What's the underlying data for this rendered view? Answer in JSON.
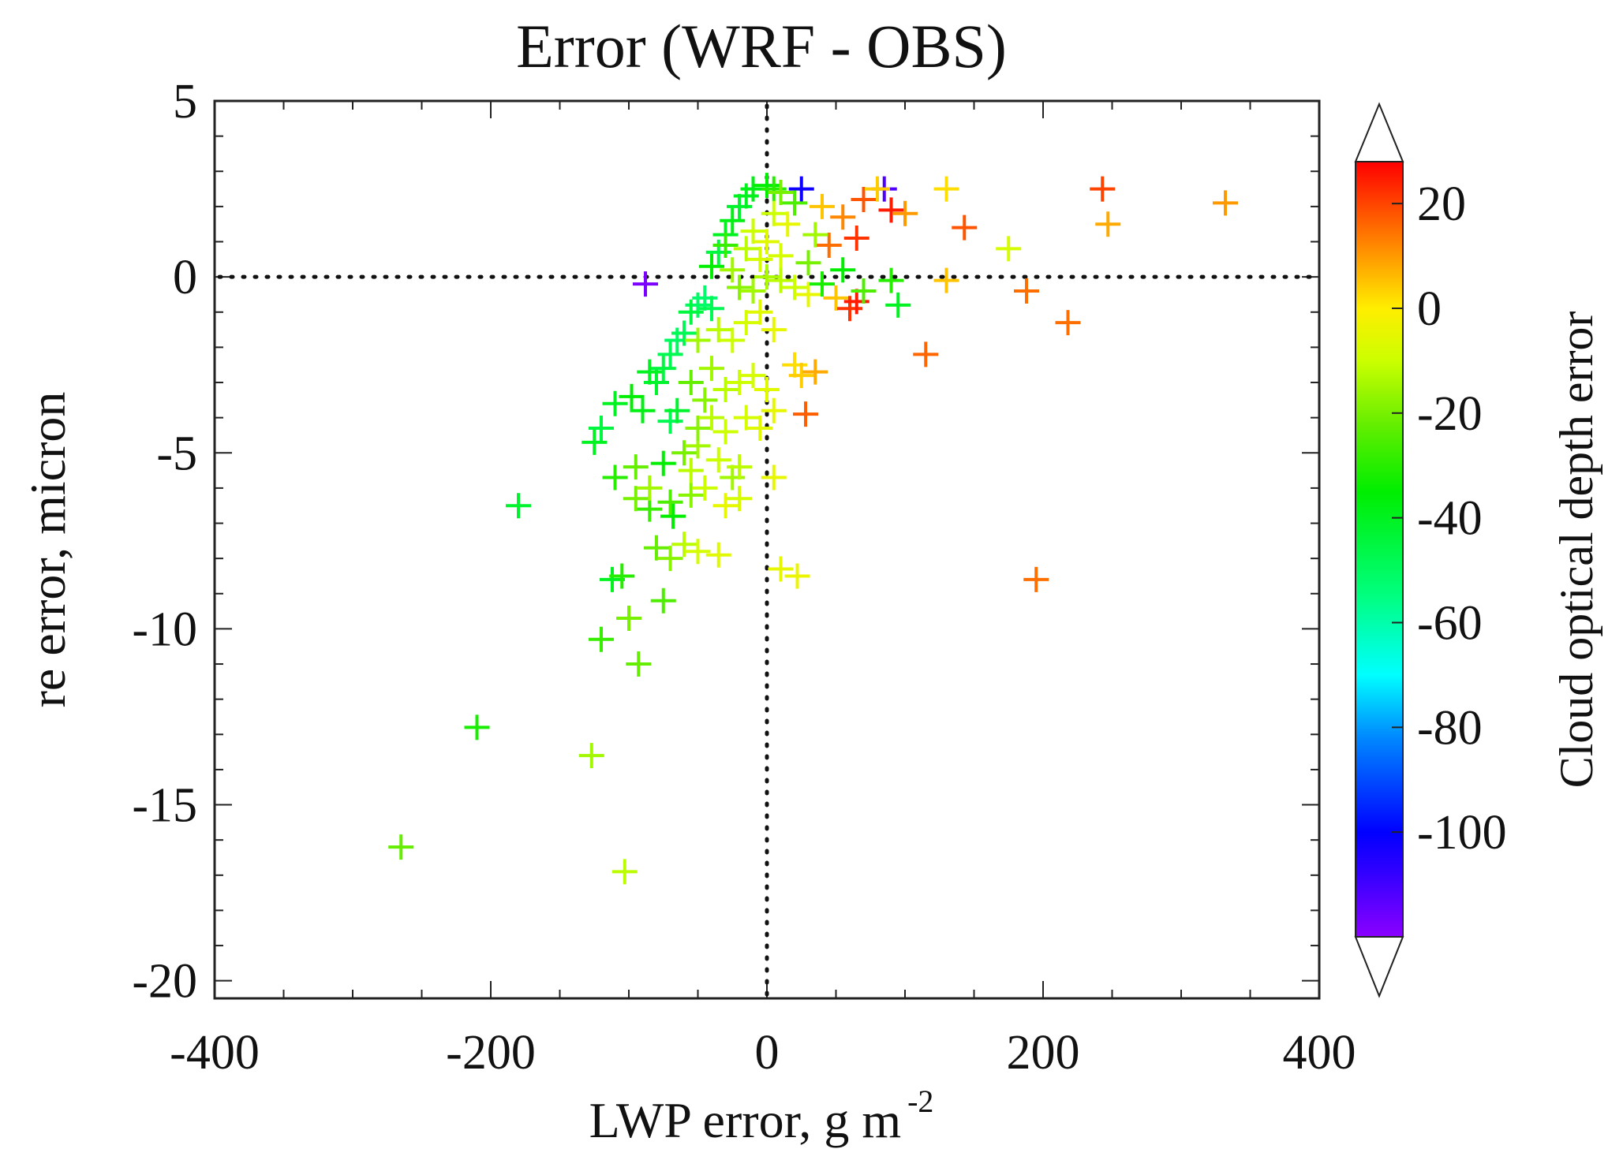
{
  "chart_data": {
    "type": "scatter",
    "title": "Error (WRF - OBS)",
    "xlabel_main": "LWP error, g m",
    "xlabel_sup": "-2",
    "ylabel": "re error, micron",
    "xlim": [
      -400,
      400
    ],
    "ylim": [
      -20.5,
      5
    ],
    "xticks": [
      -400,
      -200,
      0,
      200,
      400
    ],
    "xtick_labels": [
      "-400",
      "-200",
      "0",
      "200",
      "400"
    ],
    "yticks": [
      5,
      0,
      -5,
      -10,
      -15,
      -20
    ],
    "ytick_labels": [
      "5",
      "0",
      "-5",
      "-10",
      "-15",
      "-20"
    ],
    "reference_lines": {
      "x": 0,
      "y": 0,
      "style": "dotted"
    },
    "marker": "plus",
    "colorbar": {
      "label": "Cloud optical depth error",
      "range": [
        -120,
        28
      ],
      "ticks": [
        20,
        0,
        -20,
        -40,
        -60,
        -80,
        -100
      ],
      "tick_labels": [
        "20",
        "0",
        "-20",
        "-40",
        "-60",
        "-80",
        "-100"
      ],
      "extend": "both",
      "colormap": [
        {
          "v": -120,
          "c": "#8b00ff"
        },
        {
          "v": -108,
          "c": "#3300ff"
        },
        {
          "v": -100,
          "c": "#0000ff"
        },
        {
          "v": -82,
          "c": "#0088ff"
        },
        {
          "v": -70,
          "c": "#00ffff"
        },
        {
          "v": -55,
          "c": "#00ff80"
        },
        {
          "v": -35,
          "c": "#00ee00"
        },
        {
          "v": -22,
          "c": "#66ee00"
        },
        {
          "v": -10,
          "c": "#ccff00"
        },
        {
          "v": 0,
          "c": "#ffee00"
        },
        {
          "v": 8,
          "c": "#ffaa00"
        },
        {
          "v": 18,
          "c": "#ff5500"
        },
        {
          "v": 28,
          "c": "#ff0000"
        }
      ]
    },
    "points": [
      {
        "x": -265,
        "y": -16.2,
        "c": -22
      },
      {
        "x": -210,
        "y": -12.8,
        "c": -32
      },
      {
        "x": -180,
        "y": -6.5,
        "c": -42
      },
      {
        "x": -127,
        "y": -13.6,
        "c": -15
      },
      {
        "x": -103,
        "y": -16.9,
        "c": -12
      },
      {
        "x": -93,
        "y": -11.0,
        "c": -22
      },
      {
        "x": -120,
        "y": -10.3,
        "c": -28
      },
      {
        "x": -100,
        "y": -9.7,
        "c": -20
      },
      {
        "x": -112,
        "y": -8.6,
        "c": -40
      },
      {
        "x": -105,
        "y": -8.5,
        "c": -30
      },
      {
        "x": -75,
        "y": -9.2,
        "c": -25
      },
      {
        "x": -80,
        "y": -7.7,
        "c": -22
      },
      {
        "x": -70,
        "y": -8.0,
        "c": -18
      },
      {
        "x": -60,
        "y": -7.6,
        "c": -12
      },
      {
        "x": -50,
        "y": -7.8,
        "c": -8
      },
      {
        "x": -35,
        "y": -7.9,
        "c": -6
      },
      {
        "x": 10,
        "y": -8.3,
        "c": -5
      },
      {
        "x": 22,
        "y": -8.5,
        "c": -4
      },
      {
        "x": 195,
        "y": -8.6,
        "c": 15
      },
      {
        "x": -85,
        "y": -6.6,
        "c": -28
      },
      {
        "x": -68,
        "y": -6.8,
        "c": -35
      },
      {
        "x": -95,
        "y": -6.3,
        "c": -20
      },
      {
        "x": -85,
        "y": -6.0,
        "c": -15
      },
      {
        "x": -70,
        "y": -6.4,
        "c": -25
      },
      {
        "x": -55,
        "y": -6.2,
        "c": -18
      },
      {
        "x": -45,
        "y": -6.0,
        "c": -10
      },
      {
        "x": -30,
        "y": -6.5,
        "c": -5
      },
      {
        "x": -20,
        "y": -6.3,
        "c": -8
      },
      {
        "x": -110,
        "y": -5.7,
        "c": -30
      },
      {
        "x": -95,
        "y": -5.4,
        "c": -22
      },
      {
        "x": -75,
        "y": -5.3,
        "c": -35
      },
      {
        "x": -55,
        "y": -5.5,
        "c": -12
      },
      {
        "x": -25,
        "y": -5.7,
        "c": -15
      },
      {
        "x": 5,
        "y": -5.7,
        "c": -5
      },
      {
        "x": -60,
        "y": -5.0,
        "c": -20
      },
      {
        "x": -50,
        "y": -4.8,
        "c": -15
      },
      {
        "x": -35,
        "y": -5.2,
        "c": -10
      },
      {
        "x": -20,
        "y": -5.4,
        "c": -12
      },
      {
        "x": -125,
        "y": -4.7,
        "c": -40
      },
      {
        "x": -120,
        "y": -4.3,
        "c": -45
      },
      {
        "x": -70,
        "y": -4.1,
        "c": -48
      },
      {
        "x": -65,
        "y": -3.8,
        "c": -42
      },
      {
        "x": -50,
        "y": -4.3,
        "c": -18
      },
      {
        "x": -40,
        "y": -4.0,
        "c": -12
      },
      {
        "x": -30,
        "y": -4.4,
        "c": -10
      },
      {
        "x": -15,
        "y": -4.0,
        "c": -8
      },
      {
        "x": -5,
        "y": -4.3,
        "c": -6
      },
      {
        "x": 5,
        "y": -3.8,
        "c": -5
      },
      {
        "x": 28,
        "y": -3.9,
        "c": 17
      },
      {
        "x": -110,
        "y": -3.6,
        "c": -40
      },
      {
        "x": -98,
        "y": -3.4,
        "c": -35
      },
      {
        "x": -90,
        "y": -3.8,
        "c": -38
      },
      {
        "x": -80,
        "y": -3.0,
        "c": -42
      },
      {
        "x": -75,
        "y": -2.6,
        "c": -45
      },
      {
        "x": -70,
        "y": -2.2,
        "c": -48
      },
      {
        "x": -65,
        "y": -1.8,
        "c": -50
      },
      {
        "x": -60,
        "y": -1.6,
        "c": -48
      },
      {
        "x": -85,
        "y": -2.7,
        "c": -40
      },
      {
        "x": -55,
        "y": -3.0,
        "c": -22
      },
      {
        "x": -45,
        "y": -3.5,
        "c": -18
      },
      {
        "x": -40,
        "y": -2.6,
        "c": -15
      },
      {
        "x": -30,
        "y": -3.2,
        "c": -12
      },
      {
        "x": -20,
        "y": -3.0,
        "c": -10
      },
      {
        "x": -10,
        "y": -2.8,
        "c": -8
      },
      {
        "x": 0,
        "y": -3.2,
        "c": -6
      },
      {
        "x": 20,
        "y": -2.5,
        "c": 2
      },
      {
        "x": 25,
        "y": -2.8,
        "c": 4
      },
      {
        "x": 35,
        "y": -2.7,
        "c": 8
      },
      {
        "x": -50,
        "y": -0.8,
        "c": -50
      },
      {
        "x": -45,
        "y": -0.6,
        "c": -52
      },
      {
        "x": -40,
        "y": -0.9,
        "c": -48
      },
      {
        "x": -55,
        "y": -1.0,
        "c": -45
      },
      {
        "x": -50,
        "y": -1.8,
        "c": -15
      },
      {
        "x": -35,
        "y": -1.5,
        "c": -12
      },
      {
        "x": -25,
        "y": -1.8,
        "c": -10
      },
      {
        "x": -15,
        "y": -1.3,
        "c": -8
      },
      {
        "x": -5,
        "y": -1.0,
        "c": -6
      },
      {
        "x": 5,
        "y": -1.5,
        "c": -5
      },
      {
        "x": -40,
        "y": 0.3,
        "c": -35
      },
      {
        "x": -35,
        "y": 0.7,
        "c": -45
      },
      {
        "x": -30,
        "y": 1.2,
        "c": -40
      },
      {
        "x": -25,
        "y": 1.6,
        "c": -38
      },
      {
        "x": -20,
        "y": 2.0,
        "c": -42
      },
      {
        "x": -15,
        "y": 2.3,
        "c": -40
      },
      {
        "x": -10,
        "y": 2.5,
        "c": -38
      },
      {
        "x": 0,
        "y": 2.6,
        "c": -35
      },
      {
        "x": 5,
        "y": 2.5,
        "c": -30
      },
      {
        "x": -25,
        "y": 0.2,
        "c": -15
      },
      {
        "x": -15,
        "y": 0.8,
        "c": -12
      },
      {
        "x": -10,
        "y": 1.3,
        "c": -10
      },
      {
        "x": -5,
        "y": 0.5,
        "c": -8
      },
      {
        "x": 0,
        "y": 1.0,
        "c": -6
      },
      {
        "x": 5,
        "y": 1.8,
        "c": -10
      },
      {
        "x": 10,
        "y": 0.6,
        "c": -8
      },
      {
        "x": 15,
        "y": 1.5,
        "c": -5
      },
      {
        "x": -20,
        "y": -0.3,
        "c": -18
      },
      {
        "x": -10,
        "y": -0.4,
        "c": -15
      },
      {
        "x": 0,
        "y": 0.0,
        "c": -14
      },
      {
        "x": 10,
        "y": -0.1,
        "c": -12
      },
      {
        "x": 20,
        "y": -0.3,
        "c": -10
      },
      {
        "x": 30,
        "y": -0.5,
        "c": -5
      },
      {
        "x": 40,
        "y": -0.2,
        "c": -32
      },
      {
        "x": 50,
        "y": -0.6,
        "c": 5
      },
      {
        "x": 60,
        "y": -0.9,
        "c": 22
      },
      {
        "x": 65,
        "y": -0.7,
        "c": 25
      },
      {
        "x": 55,
        "y": 0.2,
        "c": -35
      },
      {
        "x": 70,
        "y": -0.4,
        "c": -25
      },
      {
        "x": 95,
        "y": -0.8,
        "c": -40
      },
      {
        "x": 90,
        "y": -0.1,
        "c": -30
      },
      {
        "x": -88,
        "y": -0.2,
        "c": -118
      },
      {
        "x": 25,
        "y": 2.5,
        "c": -102
      },
      {
        "x": 85,
        "y": 2.5,
        "c": -112
      },
      {
        "x": 40,
        "y": 2.0,
        "c": 5
      },
      {
        "x": 45,
        "y": 0.9,
        "c": 15
      },
      {
        "x": 55,
        "y": 1.7,
        "c": 12
      },
      {
        "x": 65,
        "y": 1.1,
        "c": 22
      },
      {
        "x": 70,
        "y": 2.2,
        "c": 18
      },
      {
        "x": 80,
        "y": 2.5,
        "c": 4
      },
      {
        "x": 90,
        "y": 1.9,
        "c": 25
      },
      {
        "x": 100,
        "y": 1.8,
        "c": 10
      },
      {
        "x": 130,
        "y": 2.5,
        "c": 2
      },
      {
        "x": 143,
        "y": 1.4,
        "c": 18
      },
      {
        "x": 130,
        "y": -0.1,
        "c": 5
      },
      {
        "x": 175,
        "y": 0.8,
        "c": -8
      },
      {
        "x": 188,
        "y": -0.4,
        "c": 15
      },
      {
        "x": 218,
        "y": -1.3,
        "c": 15
      },
      {
        "x": 115,
        "y": -2.2,
        "c": 16
      },
      {
        "x": 243,
        "y": 2.5,
        "c": 20
      },
      {
        "x": 247,
        "y": 1.5,
        "c": 8
      },
      {
        "x": 332,
        "y": 2.1,
        "c": 10
      },
      {
        "x": 30,
        "y": 0.4,
        "c": -20
      },
      {
        "x": 35,
        "y": 1.2,
        "c": -15
      },
      {
        "x": 20,
        "y": 2.1,
        "c": -25
      },
      {
        "x": 10,
        "y": 2.4,
        "c": -20
      },
      {
        "x": -30,
        "y": 0.9,
        "c": -28
      }
    ]
  }
}
